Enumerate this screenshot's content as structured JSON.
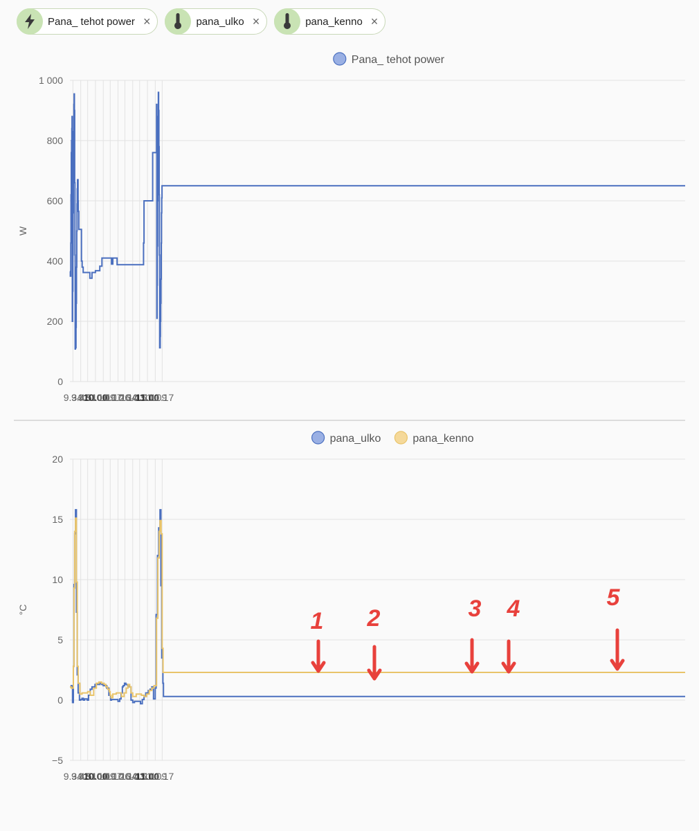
{
  "chips": [
    {
      "label": "Pana_ tehot power",
      "icon": "lightning-icon"
    },
    {
      "label": "pana_ulko",
      "icon": "thermometer-icon"
    },
    {
      "label": "pana_kenno",
      "icon": "thermometer-icon"
    }
  ],
  "colors": {
    "blue": "#4a6fbf",
    "yellow": "#e9c46a",
    "grid": "#e2e2e2",
    "annotation": "#e8413c"
  },
  "chart_data": [
    {
      "type": "line",
      "ylabel": "W",
      "ylim": [
        0,
        1000
      ],
      "yticks": [
        0,
        200,
        400,
        600,
        800,
        1000
      ],
      "ytick_labels": [
        "0",
        "200",
        "400",
        "600",
        "800",
        "1 000"
      ],
      "xlim": [
        570.5,
        1280.5
      ],
      "xticks": [
        574,
        583,
        591,
        600,
        609,
        617,
        626,
        634,
        643,
        651,
        660,
        669,
        677
      ],
      "xtick_labels": [
        "9.34",
        "9.43",
        "9.51",
        "10.00",
        "10.09",
        "10.17",
        "10.26",
        "10.34",
        "10.43",
        "10.51",
        "11.00",
        "11.09",
        "11.17"
      ],
      "bold_ticks": [
        "10.00",
        "11.00"
      ],
      "legend": "top-center",
      "grid": true,
      "series": [
        {
          "name": "Pana_ tehot power",
          "color": "#4a6fbf",
          "step": true,
          "x": [
            570.5,
            571.0,
            571.5,
            571.8,
            572.1,
            572.4,
            572.7,
            573.0,
            573.3,
            573.6,
            573.9,
            574.2,
            574.5,
            574.8,
            575.1,
            575.4,
            575.7,
            576.0,
            576.3,
            576.6,
            576.9,
            577.2,
            577.5,
            577.8,
            578.1,
            578.4,
            578.7,
            579.0,
            579.3,
            579.6,
            579.9,
            580.2,
            580.8,
            581.2,
            581.6,
            582.0,
            582.4,
            582.7,
            583.2,
            583.8,
            584.6,
            585.8,
            587.5,
            589.0,
            591.5,
            593.5,
            596.0,
            600.0,
            605.0,
            607.5,
            610.5,
            611.0,
            616.0,
            618.5,
            620.0,
            621.0,
            625.0,
            650.0,
            652.0,
            655.5,
            656.0,
            666.0,
            670.5,
            670.8,
            671.1,
            671.4,
            671.7,
            672.0,
            672.3,
            672.6,
            672.9,
            673.2,
            673.5,
            673.8,
            674.1,
            674.4,
            674.7,
            675.0,
            675.3,
            675.6,
            675.9,
            676.2,
            676.5,
            676.8,
            677.1,
            677.4,
            677.7,
            678.0,
            678.3,
            678.6,
            678.9,
            679.2,
            679.5,
            679.8,
            680.1
          ],
          "y": [
            366,
            350,
            460,
            620,
            760,
            800,
            840,
            880,
            200,
            300,
            420,
            560,
            700,
            830,
            920,
            955,
            900,
            660,
            420,
            108,
            112,
            112,
            180,
            260,
            380,
            500,
            590,
            640,
            670,
            670,
            600,
            565,
            505,
            505,
            505,
            505,
            505,
            505,
            505,
            400,
            380,
            362,
            362,
            362,
            362,
            343,
            362,
            368,
            383,
            410,
            410,
            410,
            410,
            390,
            410,
            410,
            388,
            388,
            388,
            460,
            600,
            760,
            920,
            210,
            320,
            450,
            600,
            760,
            880,
            960,
            900,
            780,
            620,
            420,
            112,
            112,
            150,
            200,
            260,
            340,
            460,
            560,
            610,
            650,
            650,
            650,
            650,
            650,
            650,
            650,
            650,
            650,
            650,
            650,
            650
          ]
        }
      ]
    },
    {
      "type": "line",
      "ylabel": "°C",
      "ylim": [
        -5,
        20
      ],
      "yticks": [
        -5,
        0,
        5,
        10,
        15,
        20
      ],
      "ytick_labels": [
        "−5",
        "0",
        "5",
        "10",
        "15",
        "20"
      ],
      "xlim": [
        570.5,
        1280.5
      ],
      "xticks": [
        574,
        583,
        591,
        600,
        609,
        617,
        626,
        634,
        643,
        651,
        660,
        669,
        677
      ],
      "xtick_labels": [
        "9.34",
        "9.43",
        "9.51",
        "10.00",
        "10.09",
        "10.17",
        "10.26",
        "10.34",
        "10.43",
        "10.51",
        "11.00",
        "11.09",
        "11.17"
      ],
      "bold_ticks": [
        "10.00",
        "11.00"
      ],
      "legend": "top-center",
      "grid": true,
      "series": [
        {
          "name": "pana_ulko",
          "color": "#4a6fbf",
          "step": true,
          "x": [
            570.5,
            572.0,
            573.5,
            574.5,
            575.2,
            576.0,
            577.0,
            578.0,
            579.0,
            580.0,
            581.5,
            583.0,
            584.5,
            586.0,
            587.5,
            589.0,
            590.5,
            592.0,
            594.0,
            596.0,
            599.5,
            602.0,
            605.0,
            607.0,
            609.0,
            611.0,
            613.0,
            615.5,
            617.5,
            618.5,
            620.0,
            622.0,
            624.0,
            626.0,
            628.0,
            629.5,
            631.0,
            632.0,
            633.5,
            635.0,
            637.0,
            639.0,
            641.0,
            643.0,
            645.0,
            646.5,
            648.5,
            650.0,
            652.0,
            654.0,
            656.0,
            658.0,
            661.0,
            663.0,
            665.0,
            667.0,
            669.0,
            670.0,
            671.5,
            673.0,
            674.5,
            675.5,
            676.5,
            677.8,
            678.5
          ],
          "y": [
            1.1,
            1.2,
            -0.2,
            2.8,
            9.6,
            13.8,
            15.8,
            7.3,
            2.1,
            0.6,
            0.0,
            0.05,
            0.15,
            0.0,
            0.1,
            0.1,
            0.0,
            0.4,
            0.9,
            1.1,
            1.3,
            1.3,
            1.4,
            1.3,
            1.2,
            1.2,
            1.0,
            0.4,
            0.0,
            0.05,
            0.05,
            0.05,
            0.05,
            -0.1,
            0.1,
            0.6,
            1.1,
            1.2,
            1.4,
            1.3,
            1.2,
            1.1,
            0.0,
            -0.2,
            -0.1,
            -0.1,
            -0.1,
            -0.1,
            -0.3,
            0.05,
            0.3,
            0.6,
            0.8,
            0.9,
            1.1,
            0.1,
            1.0,
            7.1,
            12.0,
            14.3,
            15.8,
            9.5,
            3.5,
            1.4,
            0.3
          ]
        },
        {
          "name": "pana_kenno",
          "color": "#e9c46a",
          "step": true,
          "x": [
            570.5,
            572.0,
            573.5,
            574.5,
            575.2,
            576.0,
            577.0,
            578.0,
            579.0,
            580.0,
            582.0,
            584.5,
            587.0,
            589.0,
            591.0,
            594.0,
            598.0,
            601.0,
            604.0,
            607.0,
            610.0,
            612.0,
            614.0,
            616.0,
            617.0,
            618.0,
            620.0,
            624.0,
            628.0,
            630.0,
            633.0,
            635.5,
            637.5,
            639.5,
            641.0,
            643.0,
            647.0,
            650.0,
            653.0,
            656.0,
            659.0,
            662.0,
            665.0,
            667.5,
            669.5,
            670.5,
            672.0,
            673.5,
            674.5,
            675.8,
            677.0,
            678.0
          ],
          "y": [
            1.1,
            1.0,
            1.0,
            2.8,
            9.3,
            14.0,
            15.1,
            9.8,
            2.8,
            1.4,
            0.5,
            0.6,
            0.6,
            0.6,
            0.7,
            0.4,
            1.0,
            1.4,
            1.5,
            1.4,
            1.3,
            1.1,
            0.9,
            0.7,
            0.4,
            0.2,
            0.5,
            0.6,
            0.6,
            0.3,
            0.6,
            1.0,
            1.3,
            1.1,
            0.6,
            0.3,
            0.5,
            0.5,
            0.4,
            0.3,
            0.5,
            0.8,
            1.0,
            1.2,
            1.2,
            6.8,
            11.8,
            14.0,
            14.9,
            13.8,
            4.3,
            2.3
          ]
        }
      ],
      "annotations": [
        "1",
        "2",
        "3",
        "4",
        "5"
      ]
    }
  ]
}
